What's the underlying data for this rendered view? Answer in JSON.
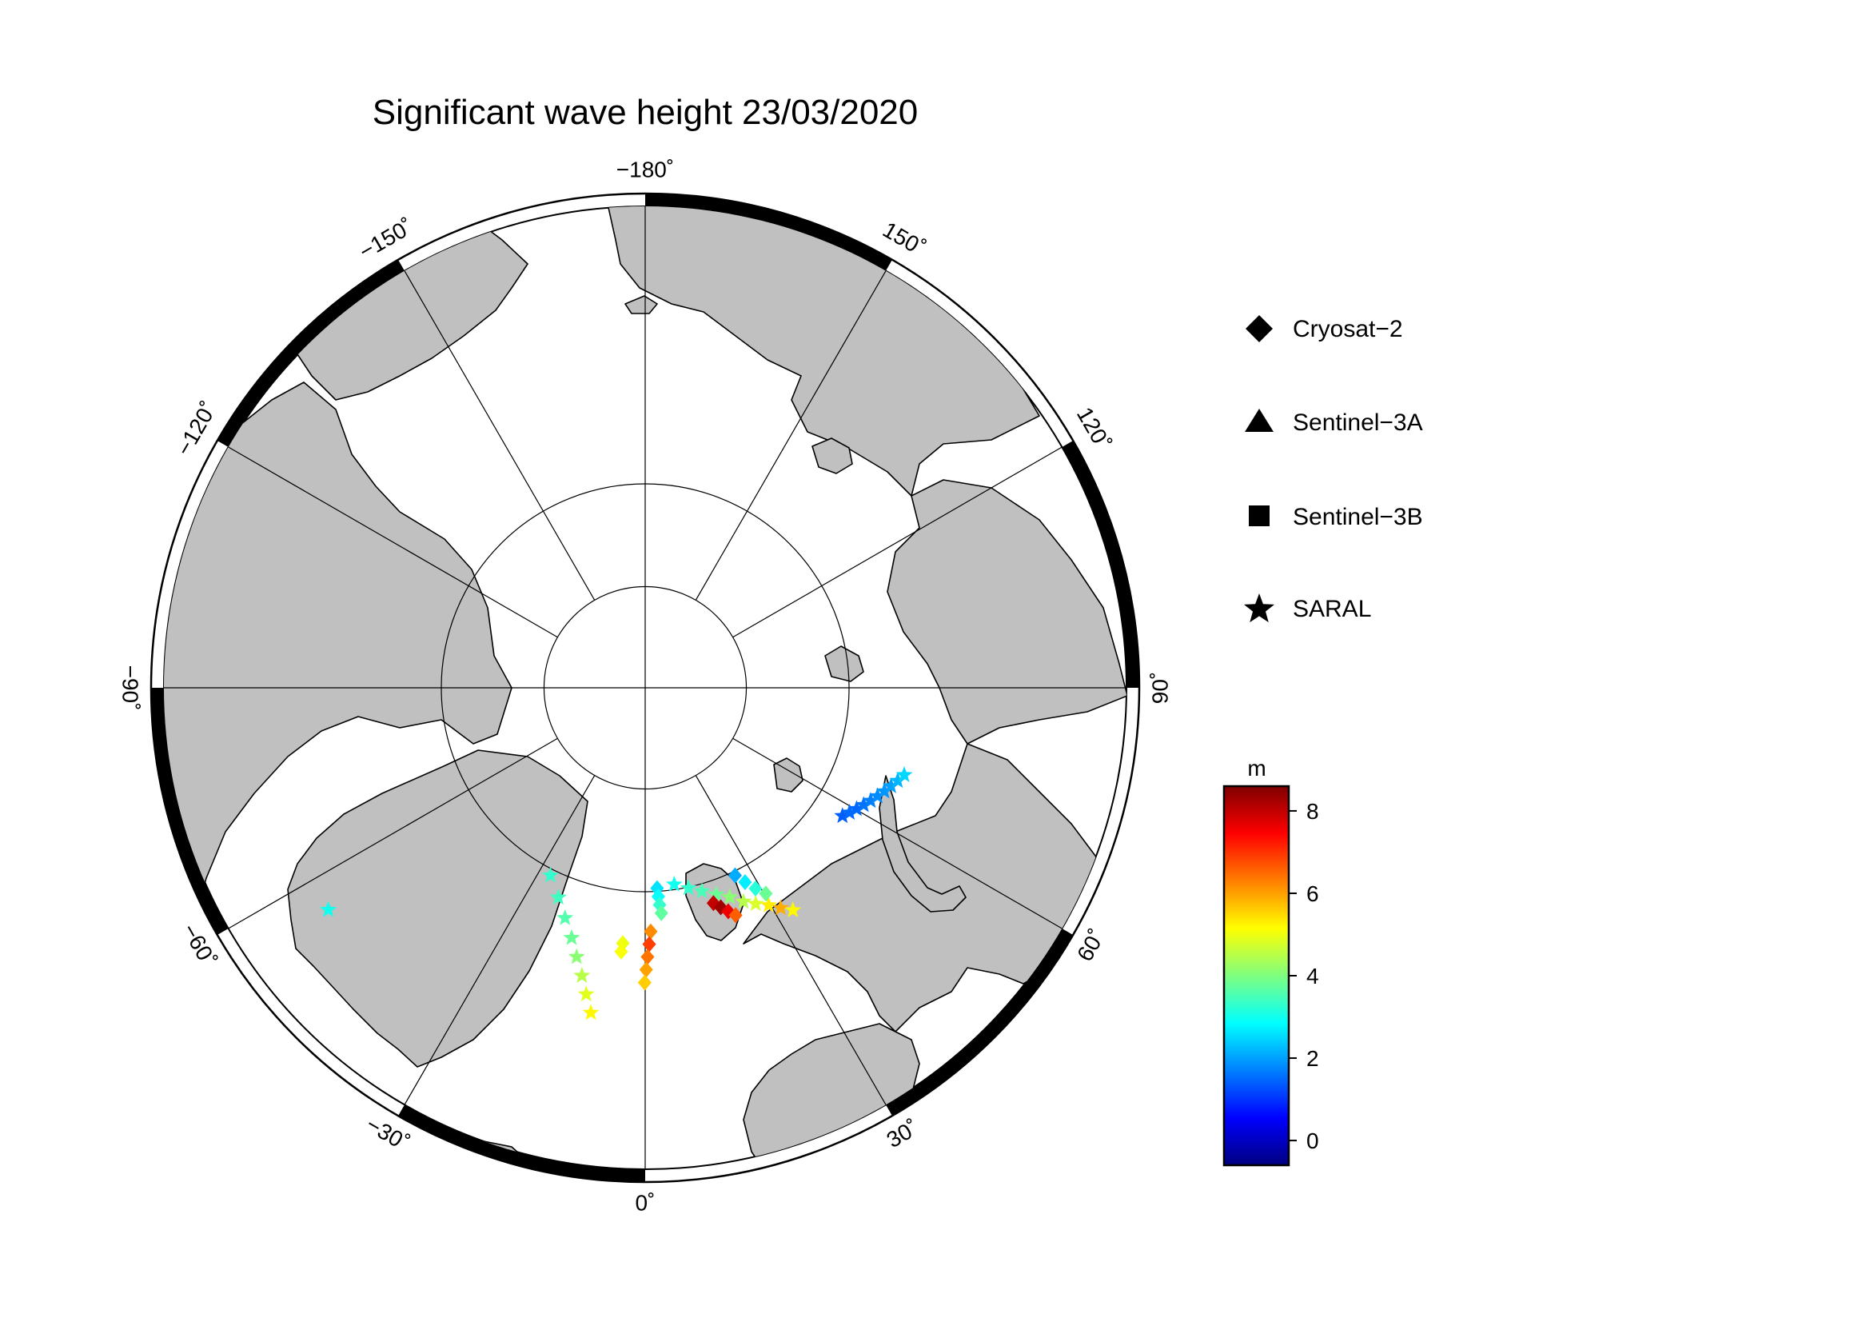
{
  "title": "Significant wave height 23/03/2020",
  "map": {
    "projection": "polar-stereographic-north",
    "latitude_rings": [
      70,
      80
    ],
    "longitude_labels": [
      {
        "lon": -180,
        "text": "−180˚"
      },
      {
        "lon": 150,
        "text": "150˚"
      },
      {
        "lon": 120,
        "text": "120˚"
      },
      {
        "lon": 90,
        "text": "90˚"
      },
      {
        "lon": 60,
        "text": "60˚"
      },
      {
        "lon": 30,
        "text": "30˚"
      },
      {
        "lon": 0,
        "text": "0˚"
      },
      {
        "lon": -30,
        "text": "−30˚"
      },
      {
        "lon": -60,
        "text": "−60˚"
      },
      {
        "lon": -90,
        "text": "−90˚"
      },
      {
        "lon": -120,
        "text": "−120˚"
      },
      {
        "lon": -150,
        "text": "−150˚"
      }
    ],
    "colors": {
      "land": "#c0c0c0",
      "ocean": "#ffffff",
      "frame": "#000000"
    }
  },
  "legend": {
    "items": [
      {
        "label": "Cryosat−2",
        "symbol": "diamond"
      },
      {
        "label": "Sentinel−3A",
        "symbol": "triangle"
      },
      {
        "label": "Sentinel−3B",
        "symbol": "square"
      },
      {
        "label": "SARAL",
        "symbol": "star"
      }
    ]
  },
  "colorbar": {
    "unit": "m",
    "min": -0.6,
    "max": 8.6,
    "ticks": [
      {
        "value": 8,
        "label": "8"
      },
      {
        "value": 6,
        "label": "6"
      },
      {
        "value": 4,
        "label": "4"
      },
      {
        "value": 2,
        "label": "2"
      },
      {
        "value": 0,
        "label": "0"
      }
    ],
    "colormap": "jet"
  },
  "chart_data": {
    "type": "scatter",
    "title": "Significant wave height 23/03/2020",
    "value_unit": "m",
    "tracks": [
      {
        "satellite": "SARAL",
        "symbol": "star",
        "points": [
          {
            "lat": 70.5,
            "lon": 8.4,
            "swh": 3.0
          },
          {
            "lat": 69.9,
            "lon": 12.2,
            "swh": 3.3
          },
          {
            "lat": 69.3,
            "lon": 15.6,
            "swh": 3.5
          },
          {
            "lat": 68.6,
            "lon": 19.0,
            "swh": 3.8
          },
          {
            "lat": 67.9,
            "lon": 22.0,
            "swh": 4.1
          },
          {
            "lat": 67.0,
            "lon": 24.7,
            "swh": 4.5
          },
          {
            "lat": 66.3,
            "lon": 27.1,
            "swh": 4.8
          },
          {
            "lat": 65.6,
            "lon": 29.6,
            "swh": 5.3
          },
          {
            "lat": 64.8,
            "lon": 31.6,
            "swh": 5.9
          },
          {
            "lat": 64.0,
            "lon": 33.6,
            "swh": 5.2
          }
        ]
      },
      {
        "satellite": "SARAL",
        "symbol": "star",
        "points": [
          {
            "lat": 67.0,
            "lon": 57.0,
            "swh": 1.4
          },
          {
            "lat": 66.6,
            "lon": 58.6,
            "swh": 1.5
          },
          {
            "lat": 66.2,
            "lon": 60.2,
            "swh": 1.5
          },
          {
            "lat": 65.8,
            "lon": 61.8,
            "swh": 1.6
          },
          {
            "lat": 65.4,
            "lon": 63.4,
            "swh": 1.7
          },
          {
            "lat": 65.0,
            "lon": 65.0,
            "swh": 1.8
          },
          {
            "lat": 64.6,
            "lon": 66.6,
            "swh": 1.9
          },
          {
            "lat": 64.2,
            "lon": 68.2,
            "swh": 2.0
          },
          {
            "lat": 63.8,
            "lon": 69.8,
            "swh": 2.2
          },
          {
            "lat": 63.4,
            "lon": 71.4,
            "swh": 2.5
          }
        ]
      },
      {
        "satellite": "SARAL",
        "symbol": "star",
        "points": [
          {
            "lat": 69.4,
            "lon": -26.8,
            "swh": 3.3
          },
          {
            "lat": 67.8,
            "lon": -22.5,
            "swh": 3.4
          },
          {
            "lat": 66.2,
            "lon": -19.2,
            "swh": 3.6
          },
          {
            "lat": 64.6,
            "lon": -16.4,
            "swh": 3.8
          },
          {
            "lat": 63.0,
            "lon": -14.3,
            "swh": 4.1
          },
          {
            "lat": 61.4,
            "lon": -12.4,
            "swh": 4.5
          },
          {
            "lat": 59.8,
            "lon": -10.9,
            "swh": 4.9
          },
          {
            "lat": 58.2,
            "lon": -9.5,
            "swh": 5.2
          }
        ]
      },
      {
        "satellite": "SARAL",
        "symbol": "star",
        "points": [
          {
            "lat": 53.0,
            "lon": -55.0,
            "swh": 3.0
          }
        ]
      },
      {
        "satellite": "Cryosat−2",
        "symbol": "diamond",
        "points": [
          {
            "lat": 70.3,
            "lon": 3.4,
            "swh": 2.6
          },
          {
            "lat": 69.5,
            "lon": 3.6,
            "swh": 2.9
          },
          {
            "lat": 68.7,
            "lon": 3.8,
            "swh": 3.3
          },
          {
            "lat": 67.9,
            "lon": 4.1,
            "swh": 3.7
          }
        ]
      },
      {
        "satellite": "Cryosat−2",
        "symbol": "diamond",
        "points": [
          {
            "lat": 66.2,
            "lon": 1.3,
            "swh": 6.2
          },
          {
            "lat": 65.0,
            "lon": 0.9,
            "swh": 6.9
          },
          {
            "lat": 63.8,
            "lon": 0.5,
            "swh": 6.4
          },
          {
            "lat": 62.6,
            "lon": 0.2,
            "swh": 6.0
          },
          {
            "lat": 61.4,
            "lon": -0.1,
            "swh": 5.6
          }
        ]
      },
      {
        "satellite": "Cryosat−2",
        "symbol": "diamond",
        "points": [
          {
            "lat": 65.0,
            "lon": -5.0,
            "swh": 5.0
          },
          {
            "lat": 64.2,
            "lon": -5.2,
            "swh": 5.1
          }
        ]
      },
      {
        "satellite": "Cryosat−2",
        "symbol": "diamond",
        "points": [
          {
            "lat": 67.9,
            "lon": 17.6,
            "swh": 8.0
          },
          {
            "lat": 67.3,
            "lon": 19.0,
            "swh": 8.3
          },
          {
            "lat": 66.7,
            "lon": 20.4,
            "swh": 7.6
          },
          {
            "lat": 66.1,
            "lon": 21.7,
            "swh": 6.6
          }
        ]
      },
      {
        "satellite": "Cryosat−2",
        "symbol": "diamond",
        "points": [
          {
            "lat": 69.6,
            "lon": 25.6,
            "swh": 2.1
          },
          {
            "lat": 68.6,
            "lon": 27.2,
            "swh": 2.7
          },
          {
            "lat": 67.6,
            "lon": 28.8,
            "swh": 3.2
          },
          {
            "lat": 66.7,
            "lon": 30.4,
            "swh": 3.8
          }
        ]
      }
    ]
  }
}
